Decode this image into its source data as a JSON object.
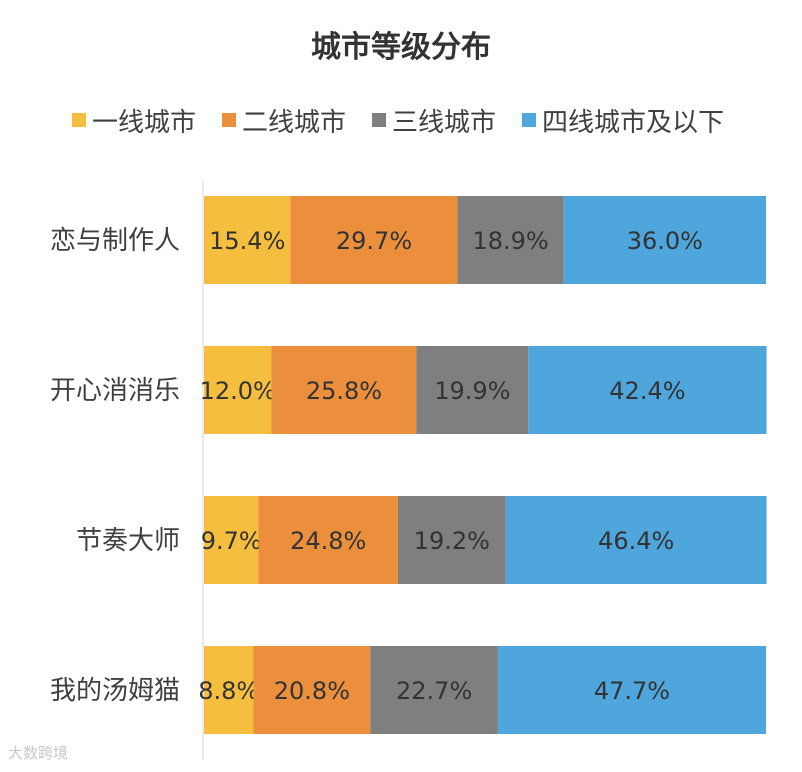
{
  "chart_data": {
    "type": "bar",
    "orientation": "horizontal",
    "stacked": true,
    "title": "城市等级分布",
    "categories": [
      "恋与制作人",
      "开心消消乐",
      "节奏大师",
      "我的汤姆猫"
    ],
    "series": [
      {
        "name": "一线城市",
        "color": "#f5be3e",
        "values": [
          15.4,
          12.0,
          9.7,
          8.8
        ]
      },
      {
        "name": "二线城市",
        "color": "#eb8f3c",
        "values": [
          29.7,
          25.8,
          24.8,
          20.8
        ]
      },
      {
        "name": "三线城市",
        "color": "#7f7f7f",
        "values": [
          18.9,
          19.9,
          19.2,
          22.7
        ]
      },
      {
        "name": "四线城市及以下",
        "color": "#4ea6dc",
        "values": [
          36.0,
          42.4,
          46.4,
          47.7
        ]
      }
    ],
    "value_suffix": "%",
    "xlim": [
      0,
      100
    ],
    "legend_position": "top",
    "grid": false
  },
  "watermark": "大数跨境"
}
